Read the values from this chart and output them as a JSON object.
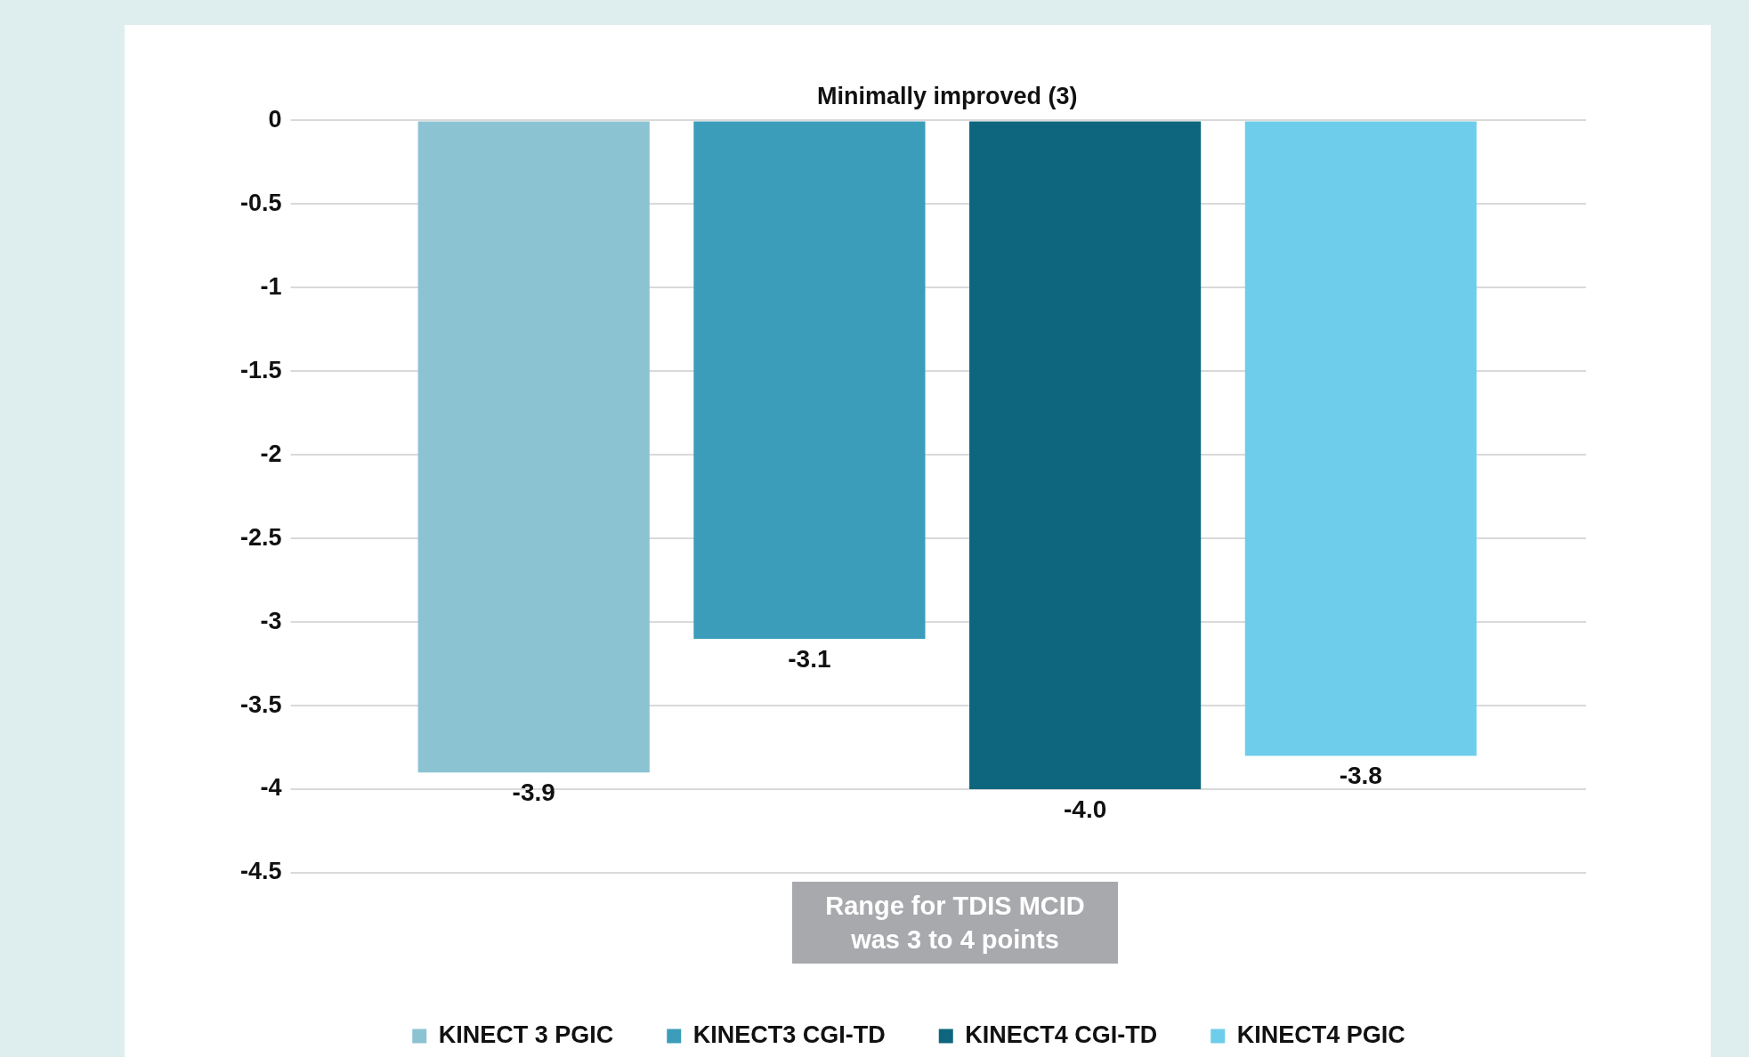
{
  "chart_data": {
    "type": "bar",
    "categories": [
      "Minimally improved (3)"
    ],
    "series": [
      {
        "name": "KINECT 3 PGIC",
        "color": "#8bc3d3",
        "values": [
          -3.9
        ],
        "value_labels": [
          "-3.9"
        ]
      },
      {
        "name": "KINECT3 CGI-TD",
        "color": "#3b9db9",
        "values": [
          -3.1
        ],
        "value_labels": [
          "-3.1"
        ]
      },
      {
        "name": "KINECT4 CGI-TD",
        "color": "#0d667e",
        "values": [
          -4.0
        ],
        "value_labels": [
          "-4.0"
        ]
      },
      {
        "name": "KINECT4 PGIC",
        "color": "#6ecdea",
        "values": [
          -3.8
        ],
        "value_labels": [
          "-3.8"
        ]
      }
    ],
    "ylim": [
      -4.5,
      0
    ],
    "yticks": [
      0,
      -0.5,
      -1,
      -1.5,
      -2,
      -2.5,
      -3,
      -3.5,
      -4,
      -4.5
    ],
    "grid": "y",
    "legend": "bottom",
    "annotations": [
      "Range for TDIS MCID was 3 to 4 points"
    ]
  }
}
